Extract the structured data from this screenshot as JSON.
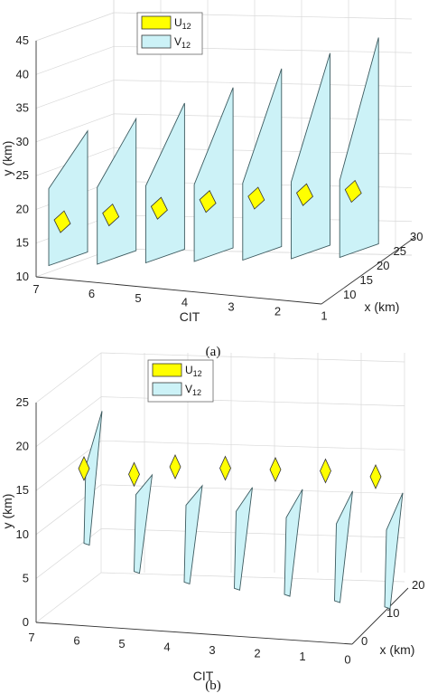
{
  "chart_data": [
    {
      "type": "3d-polygons",
      "caption": "(a)",
      "xlabel": "x (km)",
      "ylabel": "y (km)",
      "zlabel": "CIT",
      "xlim": [
        10,
        30
      ],
      "ylim": [
        10,
        45
      ],
      "zlim": [
        1,
        7
      ],
      "xticks": [
        "10",
        "15",
        "20",
        "25",
        "30"
      ],
      "yticks": [
        "10",
        "15",
        "20",
        "25",
        "30",
        "35",
        "40",
        "45"
      ],
      "zticks": [
        "1",
        "2",
        "3",
        "4",
        "5",
        "6",
        "7"
      ],
      "legend": [
        {
          "label": "U",
          "sub": "12",
          "color": "#ffff00"
        },
        {
          "label": "V",
          "sub": "12",
          "color": "#ccf2f7"
        }
      ],
      "cits": [
        7,
        6,
        5,
        4,
        3,
        2,
        1
      ],
      "V12": [
        {
          "cit": 7,
          "ybot": 11,
          "ytop": 37
        },
        {
          "cit": 6,
          "ybot": 11,
          "ytop": 38
        },
        {
          "cit": 5,
          "ybot": 11,
          "ytop": 39.5
        },
        {
          "cit": 4,
          "ybot": 11,
          "ytop": 41
        },
        {
          "cit": 3,
          "ybot": 11,
          "ytop": 43
        },
        {
          "cit": 2,
          "ybot": 11,
          "ytop": 44.5
        },
        {
          "cit": 1,
          "ybot": 11,
          "ytop": 46
        }
      ],
      "U12_center_y": [
        17.5,
        18.5,
        19.5,
        20.5,
        21,
        21.5,
        22
      ]
    },
    {
      "type": "3d-polygons",
      "caption": "(b)",
      "xlabel": "x (km)",
      "ylabel": "y (km)",
      "zlabel": "CIT",
      "xlim": [
        0,
        20
      ],
      "ylim": [
        0,
        25
      ],
      "zlim": [
        0,
        7
      ],
      "xticks": [
        "0",
        "10",
        "20"
      ],
      "yticks": [
        "0",
        "5",
        "10",
        "15",
        "20",
        "25"
      ],
      "zticks": [
        "0",
        "1",
        "2",
        "3",
        "4",
        "5",
        "6",
        "7"
      ],
      "legend": [
        {
          "label": "U",
          "sub": "12",
          "color": "#ffff00"
        },
        {
          "label": "V",
          "sub": "12",
          "color": "#ccf2f7"
        }
      ],
      "cits": [
        6,
        5,
        4,
        3,
        2,
        1,
        0
      ],
      "V12": [
        {
          "cit": 6,
          "ybot": 9,
          "ytop": 23
        },
        {
          "cit": 5,
          "ybot": 6,
          "ytop": 18
        },
        {
          "cit": 4,
          "ybot": 5,
          "ytop": 17
        },
        {
          "cit": 3,
          "ybot": 4.5,
          "ytop": 17
        },
        {
          "cit": 2,
          "ybot": 4,
          "ytop": 17
        },
        {
          "cit": 1,
          "ybot": 3.5,
          "ytop": 17
        },
        {
          "cit": 0,
          "ybot": 3,
          "ytop": 17
        }
      ],
      "U12_center_y": [
        17.5,
        17,
        18,
        18,
        18,
        18,
        17.5
      ]
    }
  ]
}
